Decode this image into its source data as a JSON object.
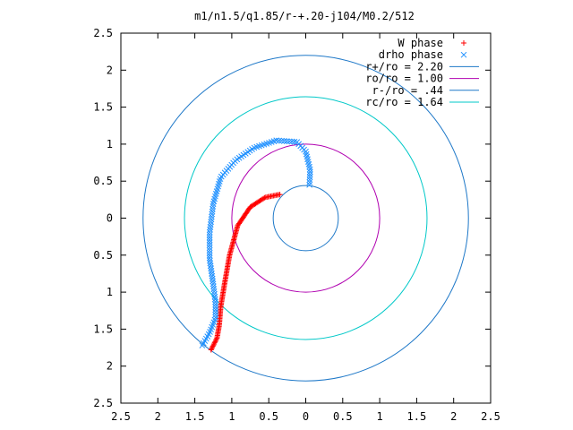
{
  "chart_data": {
    "type": "scatter",
    "title": "m1/n1.5/q1.85/r-+.20-j104/M0.2/512",
    "xlabel": "",
    "ylabel": "",
    "xlim": [
      -2.5,
      2.5
    ],
    "ylim": [
      -2.5,
      2.5
    ],
    "x_tick_values": [
      -2.5,
      -2,
      -1.5,
      -1,
      -0.5,
      0,
      0.5,
      1,
      1.5,
      2,
      2.5
    ],
    "x_tick_labels": [
      "2.5",
      "2",
      "1.5",
      "1",
      "0.5",
      "0",
      "0.5",
      "1",
      "1.5",
      "2",
      "2.5"
    ],
    "y_tick_values": [
      2.5,
      2,
      1.5,
      1,
      0.5,
      0,
      -0.5,
      -1,
      -1.5,
      -2,
      -2.5
    ],
    "y_tick_labels": [
      "2.5",
      "2",
      "1.5",
      "1",
      "0.5",
      "0",
      "0.5",
      "1",
      "1.5",
      "2",
      "2.5"
    ],
    "grid": false,
    "legend_position": "top-right",
    "series": [
      {
        "name": "W phase",
        "marker": "plus",
        "color": "#ff0000",
        "control_points": [
          [
            -0.35,
            0.32
          ],
          [
            -0.55,
            0.28
          ],
          [
            -0.75,
            0.15
          ],
          [
            -0.92,
            -0.1
          ],
          [
            -1.03,
            -0.5
          ],
          [
            -1.1,
            -0.9
          ],
          [
            -1.15,
            -1.2
          ],
          [
            -1.17,
            -1.45
          ],
          [
            -1.2,
            -1.62
          ],
          [
            -1.28,
            -1.78
          ]
        ]
      },
      {
        "name": "drho phase",
        "marker": "x",
        "color": "#1e90ff",
        "control_points": [
          [
            0.05,
            0.45
          ],
          [
            0.06,
            0.65
          ],
          [
            0.0,
            0.9
          ],
          [
            -0.12,
            1.03
          ],
          [
            -0.4,
            1.05
          ],
          [
            -0.7,
            0.95
          ],
          [
            -0.95,
            0.78
          ],
          [
            -1.15,
            0.55
          ],
          [
            -1.25,
            0.2
          ],
          [
            -1.3,
            -0.2
          ],
          [
            -1.3,
            -0.55
          ],
          [
            -1.25,
            -0.9
          ],
          [
            -1.22,
            -1.15
          ],
          [
            -1.22,
            -1.35
          ],
          [
            -1.3,
            -1.55
          ],
          [
            -1.4,
            -1.72
          ]
        ]
      }
    ],
    "circles": [
      {
        "label": "r+/ro = 2.20",
        "radius": 2.2,
        "color": "#1e78c8"
      },
      {
        "label": "ro/ro = 1.00",
        "radius": 1.0,
        "color": "#b000b0"
      },
      {
        "label": "r-/ro = .44",
        "radius": 0.44,
        "color": "#1e78c8"
      },
      {
        "label": "rc/ro = 1.64",
        "radius": 1.64,
        "color": "#00c8c8"
      }
    ]
  }
}
